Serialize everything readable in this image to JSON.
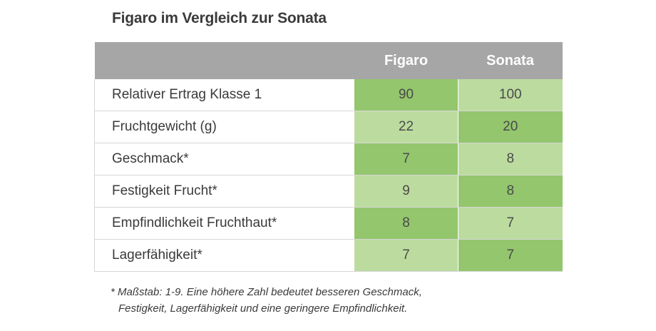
{
  "title": "Figaro im Vergleich zur Sonata",
  "table": {
    "headers": [
      "",
      "Figaro",
      "Sonata"
    ],
    "rows": [
      {
        "label": "Relativer Ertrag Klasse 1",
        "figaro": "90",
        "sonata": "100"
      },
      {
        "label": "Fruchtgewicht (g)",
        "figaro": "22",
        "sonata": "20"
      },
      {
        "label": "Geschmack*",
        "figaro": "7",
        "sonata": "8"
      },
      {
        "label": "Festigkeit Frucht*",
        "figaro": "9",
        "sonata": "8"
      },
      {
        "label": "Empfindlichkeit Fruchthaut*",
        "figaro": "8",
        "sonata": "7"
      },
      {
        "label": "Lagerfähigkeit*",
        "figaro": "7",
        "sonata": "7"
      }
    ]
  },
  "footnote": {
    "line1": "* Maßstab: 1-9. Eine höhere Zahl bedeutet besseren Geschmack,",
    "line2": "Festigkeit, Lagerfähigkeit und eine geringere Empfindlichkeit."
  },
  "colors": {
    "header_bg": "#a6a6a6",
    "cell_dark_green": "#93c66d",
    "cell_light_green": "#bcdc9f"
  }
}
